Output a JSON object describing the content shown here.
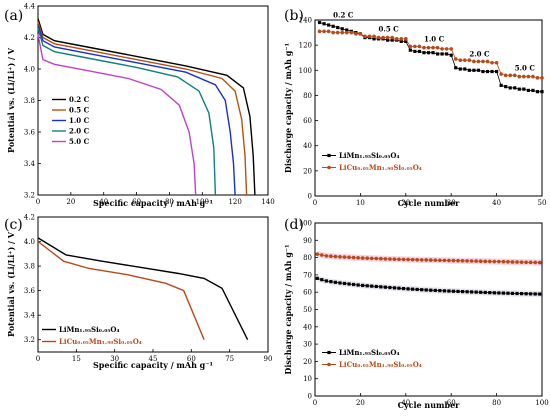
{
  "chart_data": [
    {
      "panel": "(a)",
      "type": "line",
      "xlabel": "Specific capacity / mAh g⁻¹",
      "ylabel": "Potential vs. (Li/Li⁺) / V",
      "xlim": [
        0,
        140
      ],
      "ylim": [
        3.2,
        4.4
      ],
      "xticks": [
        "0",
        "20",
        "40",
        "60",
        "80",
        "100",
        "120",
        "140"
      ],
      "yticks": [
        "3.2",
        "3.4",
        "3.6",
        "3.8",
        "4.0",
        "4.2",
        "4.4"
      ],
      "legend": "middle-left",
      "series": [
        {
          "name": "0.2 C",
          "color": "#000000",
          "points": [
            [
              0,
              4.32
            ],
            [
              3,
              4.22
            ],
            [
              10,
              4.18
            ],
            [
              30,
              4.14
            ],
            [
              60,
              4.08
            ],
            [
              90,
              4.02
            ],
            [
              115,
              3.96
            ],
            [
              125,
              3.88
            ],
            [
              129,
              3.7
            ],
            [
              131,
              3.45
            ],
            [
              132,
              3.2
            ]
          ]
        },
        {
          "name": "0.5 C",
          "color": "#b8520f",
          "points": [
            [
              0,
              4.3
            ],
            [
              3,
              4.2
            ],
            [
              10,
              4.16
            ],
            [
              30,
              4.12
            ],
            [
              60,
              4.06
            ],
            [
              90,
              4.0
            ],
            [
              112,
              3.94
            ],
            [
              120,
              3.86
            ],
            [
              124,
              3.68
            ],
            [
              126,
              3.45
            ],
            [
              127,
              3.2
            ]
          ]
        },
        {
          "name": "1.0 C",
          "color": "#1a2fd0",
          "points": [
            [
              0,
              4.28
            ],
            [
              3,
              4.18
            ],
            [
              10,
              4.14
            ],
            [
              30,
              4.1
            ],
            [
              60,
              4.04
            ],
            [
              90,
              3.98
            ],
            [
              108,
              3.9
            ],
            [
              114,
              3.8
            ],
            [
              117,
              3.6
            ],
            [
              119,
              3.4
            ],
            [
              120,
              3.2
            ]
          ]
        },
        {
          "name": "2.0 C",
          "color": "#0e8080",
          "points": [
            [
              0,
              4.26
            ],
            [
              3,
              4.15
            ],
            [
              10,
              4.11
            ],
            [
              30,
              4.07
            ],
            [
              60,
              4.01
            ],
            [
              85,
              3.95
            ],
            [
              98,
              3.86
            ],
            [
              104,
              3.72
            ],
            [
              107,
              3.5
            ],
            [
              108,
              3.2
            ]
          ]
        },
        {
          "name": "5.0 C",
          "color": "#c040c8",
          "points": [
            [
              0,
              4.22
            ],
            [
              3,
              4.06
            ],
            [
              10,
              4.03
            ],
            [
              30,
              3.99
            ],
            [
              55,
              3.94
            ],
            [
              75,
              3.87
            ],
            [
              86,
              3.77
            ],
            [
              92,
              3.6
            ],
            [
              95,
              3.4
            ],
            [
              96,
              3.2
            ]
          ]
        }
      ],
      "rate_labels": []
    },
    {
      "panel": "(b)",
      "type": "scatter",
      "xlabel": "Cycle number",
      "ylabel": "Discharge capacity / mAh g⁻¹",
      "xlim": [
        0,
        50
      ],
      "ylim": [
        0,
        140
      ],
      "xticks": [
        "0",
        "10",
        "20",
        "30",
        "40",
        "50"
      ],
      "yticks": [
        "0",
        "20",
        "40",
        "60",
        "80",
        "100",
        "120",
        "140"
      ],
      "legend": "bottom-left",
      "rate_labels": [
        {
          "text": "0.2 C",
          "x": 4,
          "y": 142
        },
        {
          "text": "0.5 C",
          "x": 14,
          "y": 131
        },
        {
          "text": "1.0 C",
          "x": 24,
          "y": 123
        },
        {
          "text": "2.0 C",
          "x": 34,
          "y": 111
        },
        {
          "text": "5.0 C",
          "x": 44,
          "y": 100
        }
      ],
      "series": [
        {
          "name": "LiMn₁.₉₅Si₀.₀₅O₄",
          "color": "#000000",
          "marker": "square",
          "values": [
            138,
            137,
            136,
            135,
            134,
            133,
            132,
            131,
            130,
            129,
            126,
            126,
            125,
            125,
            125,
            124,
            124,
            124,
            123,
            123,
            116,
            115,
            115,
            114,
            114,
            114,
            113,
            113,
            113,
            112,
            102,
            101,
            101,
            100,
            100,
            100,
            99,
            99,
            99,
            99,
            88,
            87,
            86,
            86,
            85,
            85,
            84,
            84,
            83,
            83
          ]
        },
        {
          "name": "LiCu₀.₀₅Mn₁.₉₀Si₀.₀₅O₄",
          "color": "#b84a1a",
          "marker": "circle",
          "values": [
            131,
            131,
            131,
            130,
            130,
            130,
            130,
            130,
            129,
            129,
            127,
            127,
            127,
            126,
            126,
            126,
            126,
            125,
            125,
            125,
            119,
            119,
            119,
            118,
            118,
            118,
            118,
            117,
            117,
            117,
            109,
            108,
            108,
            108,
            107,
            107,
            107,
            107,
            106,
            106,
            97,
            96,
            96,
            96,
            95,
            95,
            95,
            95,
            94,
            94
          ]
        }
      ]
    },
    {
      "panel": "(c)",
      "type": "line",
      "xlabel": "Specific capacity / mAh g⁻¹",
      "ylabel": "Potential vs. (Li/Li⁺) / V",
      "xlim": [
        0,
        90
      ],
      "ylim": [
        3.1,
        4.2
      ],
      "xticks": [
        "0",
        "15",
        "30",
        "45",
        "60",
        "75",
        "90"
      ],
      "yticks": [
        "3.2",
        "3.4",
        "3.6",
        "3.8",
        "4.0",
        "4.2"
      ],
      "legend": "bottom-left",
      "rate_labels": [],
      "series": [
        {
          "name": "LiMn₁.₉₅Si₀.₀₅O₄",
          "color": "#000000",
          "points": [
            [
              0,
              4.03
            ],
            [
              11,
              3.89
            ],
            [
              25,
              3.84
            ],
            [
              40,
              3.79
            ],
            [
              55,
              3.74
            ],
            [
              65,
              3.7
            ],
            [
              72,
              3.62
            ],
            [
              82,
              3.2
            ]
          ]
        },
        {
          "name": "LiCu₀.₀₅Mn₁.₉₀Si₀.₀₅O₄",
          "color": "#b84a1a",
          "points": [
            [
              0,
              4.0
            ],
            [
              10,
              3.84
            ],
            [
              20,
              3.78
            ],
            [
              35,
              3.73
            ],
            [
              50,
              3.66
            ],
            [
              57,
              3.6
            ],
            [
              65,
              3.2
            ]
          ]
        }
      ]
    },
    {
      "panel": "(d)",
      "type": "scatter",
      "xlabel": "Cycle number",
      "ylabel": "Discharge capacity / mAh g⁻¹",
      "xlim": [
        0,
        100
      ],
      "ylim": [
        0,
        100
      ],
      "xticks": [
        "0",
        "20",
        "40",
        "60",
        "80",
        "100"
      ],
      "yticks": [
        "0",
        "10",
        "20",
        "30",
        "40",
        "50",
        "60",
        "70",
        "80",
        "90",
        "100"
      ],
      "legend": "bottom-left",
      "rate_labels": [],
      "series": [
        {
          "name": "LiMn₁.₉₅Si₀.₀₅O₄",
          "color": "#000000",
          "marker": "square",
          "anchors": [
            [
              1,
              68
            ],
            [
              5,
              66.5
            ],
            [
              10,
              65.5
            ],
            [
              20,
              64
            ],
            [
              30,
              63
            ],
            [
              40,
              62
            ],
            [
              50,
              61.2
            ],
            [
              60,
              60.6
            ],
            [
              70,
              60.1
            ],
            [
              80,
              59.6
            ],
            [
              90,
              59.2
            ],
            [
              100,
              58.9
            ]
          ]
        },
        {
          "name": "LiCu₀.₀₅Mn₁.₉₀Si₀.₀₅O₄",
          "color": "#b84a1a",
          "marker": "circle",
          "anchors": [
            [
              1,
              82
            ],
            [
              5,
              81
            ],
            [
              10,
              80.5
            ],
            [
              20,
              79.8
            ],
            [
              30,
              79.3
            ],
            [
              40,
              78.9
            ],
            [
              50,
              78.6
            ],
            [
              60,
              78.3
            ],
            [
              70,
              78
            ],
            [
              80,
              77.7
            ],
            [
              90,
              77.4
            ],
            [
              100,
              77.1
            ]
          ]
        }
      ]
    }
  ]
}
